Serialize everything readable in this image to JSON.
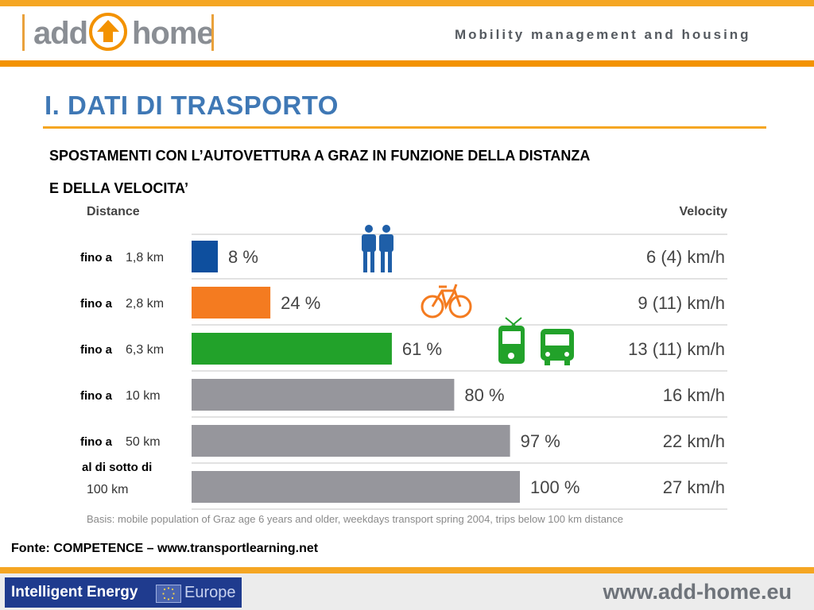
{
  "header": {
    "logo_left": "add",
    "logo_right": "home",
    "tagline": "Mobility management and housing"
  },
  "title": "I. DATI DI TRASPORTO",
  "subtitle_line1": "SPOSTAMENTI CON L’AUTOVETTURA A GRAZ IN FUNZIONE DELLA DISTANZA",
  "subtitle_line2": "E DELLA VELOCITA’",
  "chart_data": {
    "type": "bar",
    "orientation": "horizontal",
    "column_headers": {
      "distance": "Distance",
      "velocity": "Velocity"
    },
    "row_prefixes": [
      "fino a",
      "fino a",
      "fino a",
      "fino a",
      "fino a",
      "al di sotto di"
    ],
    "categories": [
      "1,8 km",
      "2,8 km",
      "6,3 km",
      "10 km",
      "50 km",
      "100 km"
    ],
    "values": [
      8,
      24,
      61,
      80,
      97,
      100
    ],
    "value_labels": [
      "8 %",
      "24 %",
      "61 %",
      "80 %",
      "97 %",
      "100 %"
    ],
    "velocities": [
      "6 (4) km/h",
      "9 (11) km/h",
      "13 (11) km/h",
      "16 km/h",
      "22 km/h",
      "27 km/h"
    ],
    "colors": [
      "#0e4f9e",
      "#f47b20",
      "#22a22a",
      "#96969c",
      "#96969c",
      "#96969c"
    ],
    "icons": [
      "pedestrians-icon",
      "bicycle-icon",
      "tram-icon",
      "bus-icon"
    ],
    "icon_colors": {
      "pedestrians": "#1f5fa8",
      "bicycle": "#f47b20",
      "tram": "#22a22a",
      "bus": "#22a22a"
    },
    "xlim": [
      0,
      100
    ],
    "footnote": "Basis: mobile population of Graz age 6 years and older, weekdays transport spring 2004, trips below 100 km distance"
  },
  "source": "Fonte: COMPETENCE – www.transportlearning.net",
  "footer": {
    "ie_text1": "Intelligent Energy",
    "ie_text2": "Europe",
    "site_url": "www.add-home.eu"
  }
}
